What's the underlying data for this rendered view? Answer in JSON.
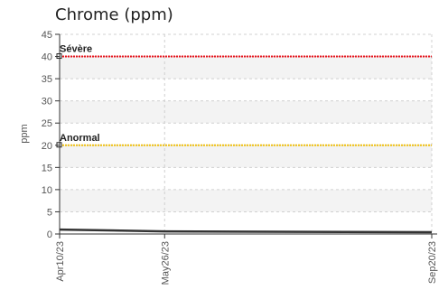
{
  "chart_data": {
    "type": "line",
    "title": "Chrome (ppm)",
    "ylabel": "ppm",
    "xlabel": "",
    "ylim": [
      0,
      45
    ],
    "yticks": [
      0,
      5,
      10,
      15,
      20,
      25,
      30,
      35,
      40,
      45
    ],
    "xlim": [
      "2023-04-10",
      "2023-09-20"
    ],
    "xticks": [
      {
        "date": "2023-04-10",
        "label": "Apr10/23"
      },
      {
        "date": "2023-05-26",
        "label": "May26/23"
      },
      {
        "date": "2023-09-20",
        "label": "Sep20/23"
      }
    ],
    "grid": true,
    "thresholds": [
      {
        "name": "Sévère",
        "value": 40,
        "color": "#e8141c"
      },
      {
        "name": "Anormal",
        "value": 20,
        "color": "#f0c010"
      }
    ],
    "series": [
      {
        "color": "#333333",
        "x": [
          "2023-04-10",
          "2023-05-26",
          "2023-09-20"
        ],
        "y": [
          1,
          0.6,
          0.4
        ]
      }
    ]
  }
}
